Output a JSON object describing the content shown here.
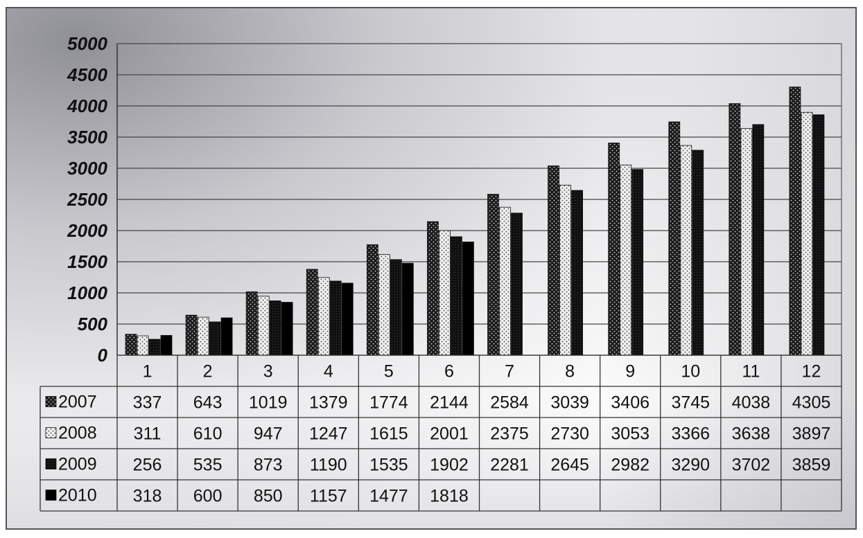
{
  "chart_data": {
    "type": "bar",
    "categories": [
      "1",
      "2",
      "3",
      "4",
      "5",
      "6",
      "7",
      "8",
      "9",
      "10",
      "11",
      "12"
    ],
    "ylim": [
      0,
      5000
    ],
    "yticks": [
      "0",
      "500",
      "1000",
      "1500",
      "2000",
      "2500",
      "3000",
      "3500",
      "4000",
      "4500",
      "5000"
    ],
    "grid": true,
    "legend": "data-table-left",
    "series": [
      {
        "name": "2007",
        "color": "#2a2a2a",
        "pattern": "dark-dots",
        "values": [
          337,
          643,
          1019,
          1379,
          1774,
          2144,
          2584,
          3039,
          3406,
          3745,
          4038,
          4305
        ],
        "labels": [
          "337",
          "643",
          "1019",
          "1379",
          "1774",
          "2144",
          "2584",
          "3039",
          "3406",
          "3745",
          "4038",
          "4305"
        ]
      },
      {
        "name": "2008",
        "color": "#bdbdbd",
        "pattern": "light-dots",
        "values": [
          311,
          610,
          947,
          1247,
          1615,
          2001,
          2375,
          2730,
          3053,
          3366,
          3638,
          3897
        ],
        "labels": [
          "311",
          "610",
          "947",
          "1247",
          "1615",
          "2001",
          "2375",
          "2730",
          "3053",
          "3366",
          "3638",
          "3897"
        ]
      },
      {
        "name": "2009",
        "color": "#111111",
        "pattern": "solid-dark",
        "values": [
          256,
          535,
          873,
          1190,
          1535,
          1902,
          2281,
          2645,
          2982,
          3290,
          3702,
          3859
        ],
        "labels": [
          "256",
          "535",
          "873",
          "1190",
          "1535",
          "1902",
          "2281",
          "2645",
          "2982",
          "3290",
          "3702",
          "3859"
        ]
      },
      {
        "name": "2010",
        "color": "#000000",
        "pattern": "solid",
        "values": [
          318,
          600,
          850,
          1157,
          1477,
          1818,
          null,
          null,
          null,
          null,
          null,
          null
        ],
        "labels": [
          "318",
          "600",
          "850",
          "1157",
          "1477",
          "1818",
          "",
          "",
          "",
          "",
          "",
          ""
        ]
      }
    ]
  }
}
